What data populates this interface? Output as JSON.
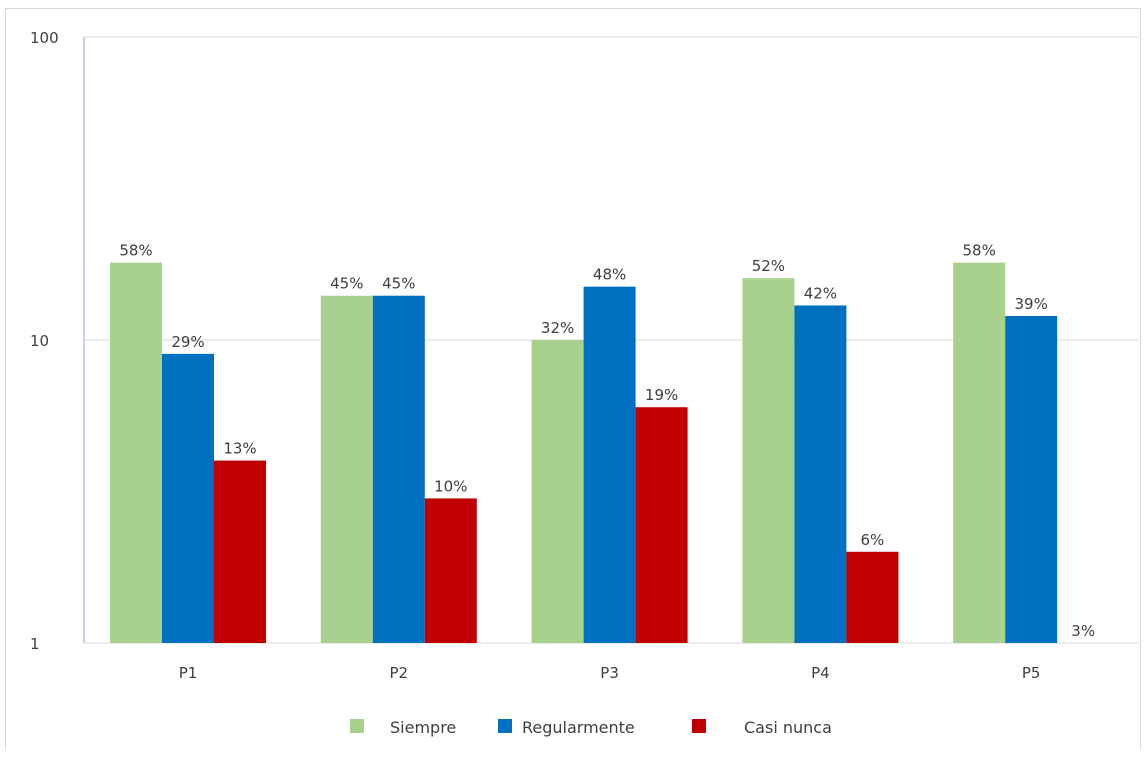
{
  "chart_data": {
    "type": "bar",
    "yscale": "log",
    "ylim": [
      1,
      100
    ],
    "yticks": [
      "1",
      "10",
      "100"
    ],
    "categories": [
      "P1",
      "P2",
      "P3",
      "P4",
      "P5"
    ],
    "series": [
      {
        "name": "Siempre",
        "color": "#a9d18e",
        "values": [
          18,
          14,
          10,
          16,
          18
        ],
        "labels": [
          "58%",
          "45%",
          "32%",
          "52%",
          "58%"
        ]
      },
      {
        "name": "Regularmente",
        "color": "#0070c0",
        "values": [
          9,
          14,
          15,
          13,
          12
        ],
        "labels": [
          "29%",
          "45%",
          "48%",
          "42%",
          "39%"
        ]
      },
      {
        "name": "Casi nunca",
        "color": "#c00000",
        "values": [
          4,
          3,
          6,
          2,
          1
        ],
        "labels": [
          "13%",
          "10%",
          "19%",
          "6%",
          "3%"
        ]
      }
    ],
    "grid": true,
    "legend": "bottom"
  }
}
